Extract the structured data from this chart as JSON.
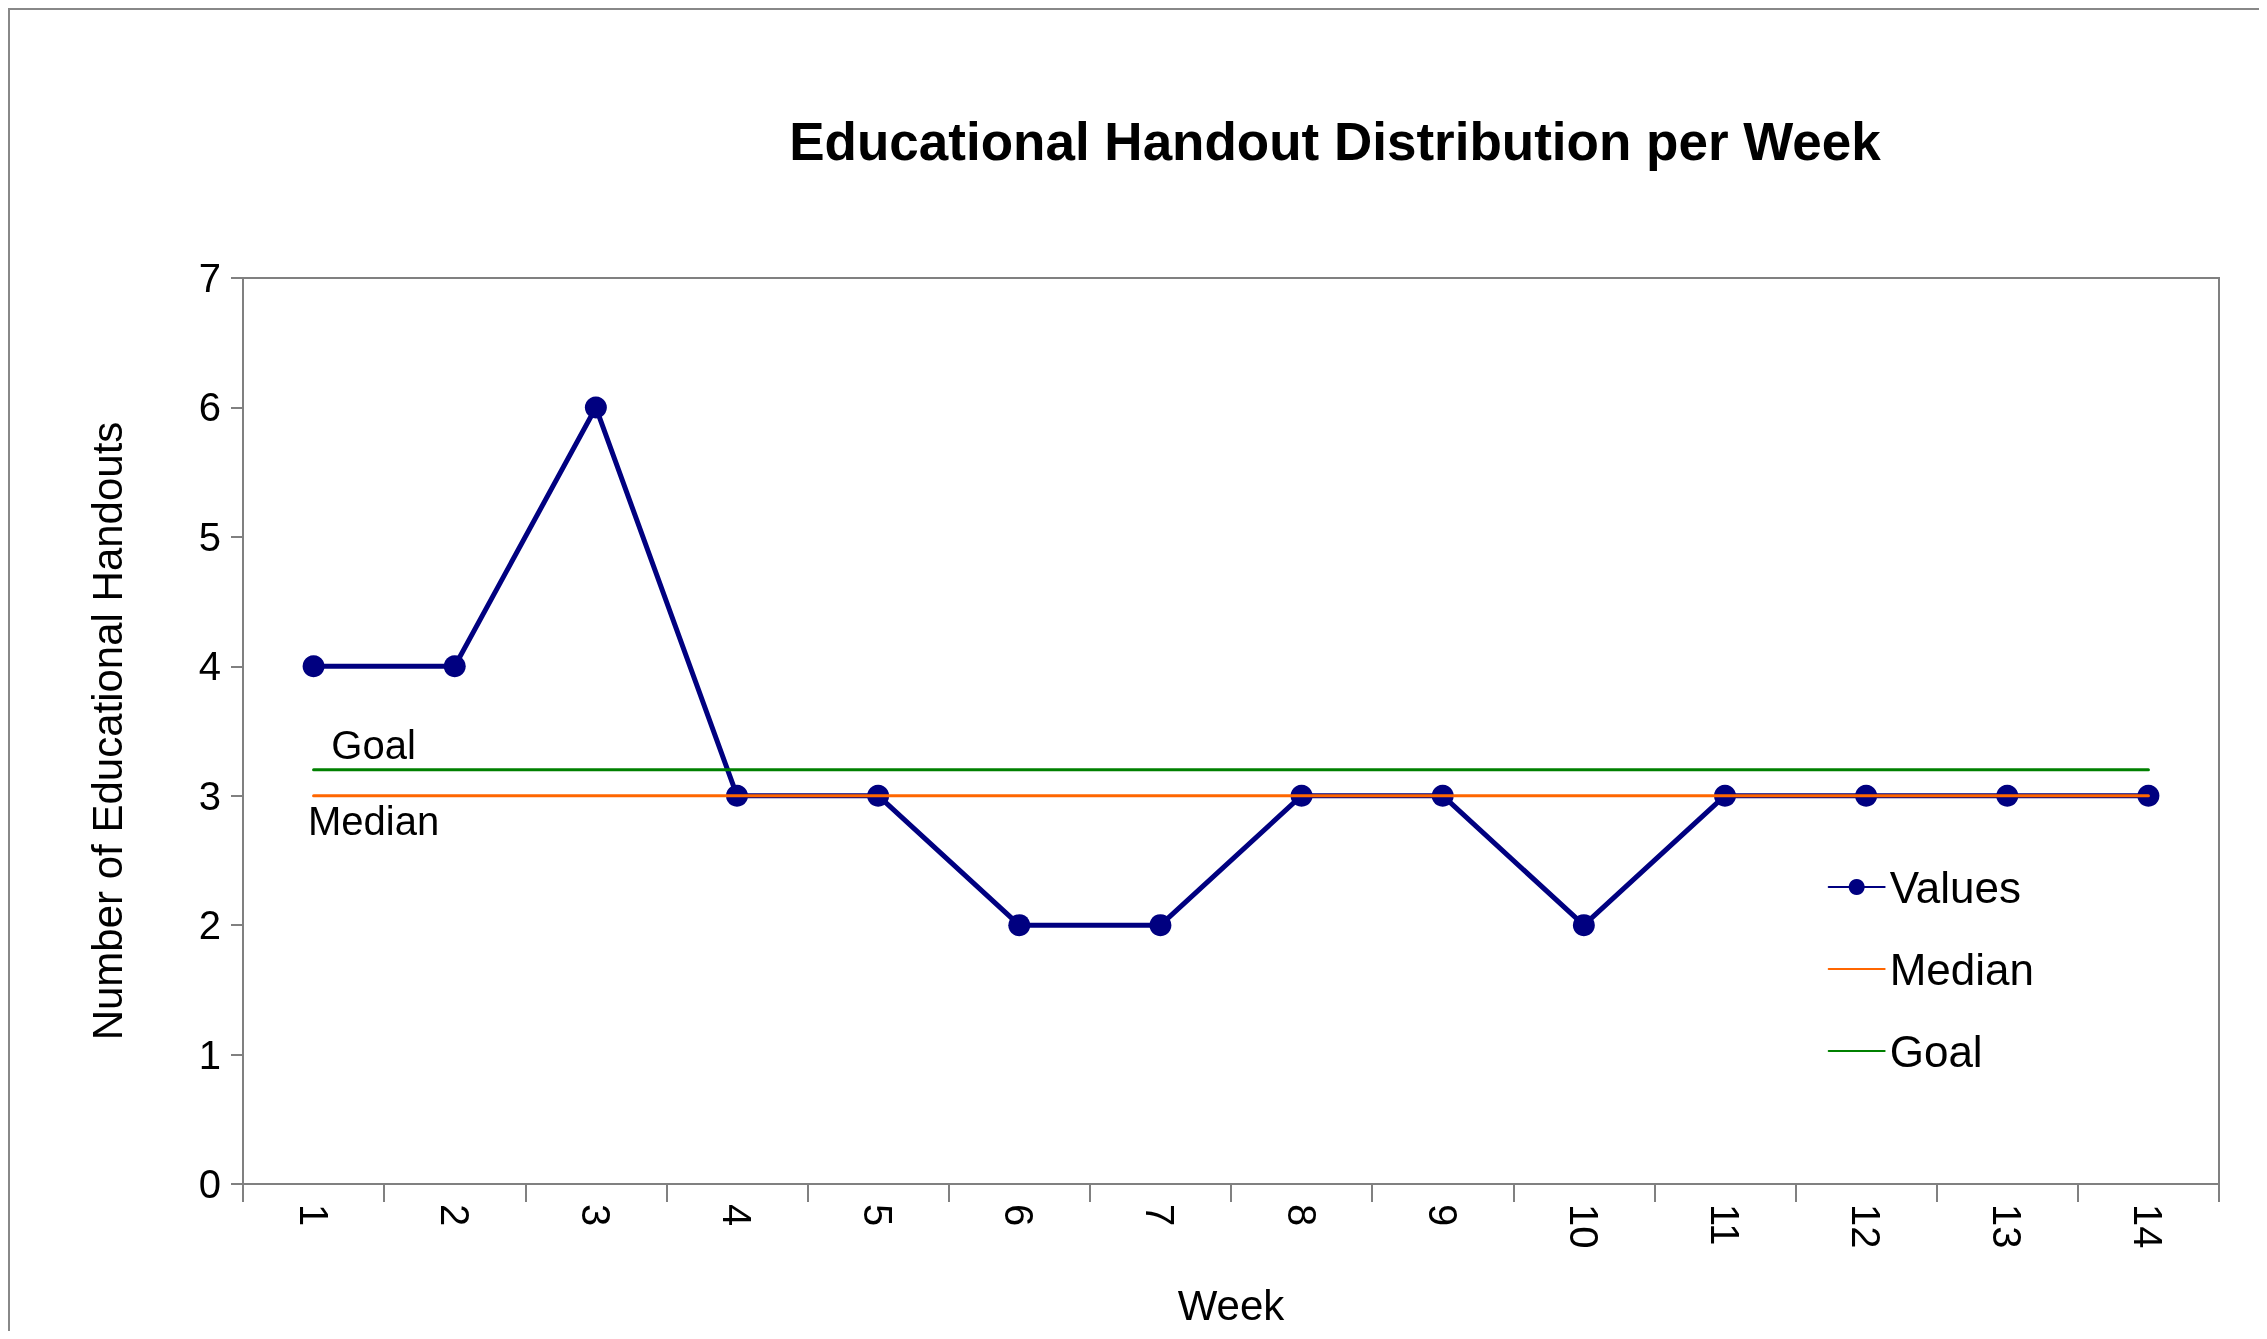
{
  "chart_data": {
    "type": "line",
    "title": "Educational Handout Distribution per Week",
    "xlabel": "Week",
    "ylabel": "Number of Educational Handouts",
    "categories": [
      "1",
      "2",
      "3",
      "4",
      "5",
      "6",
      "7",
      "8",
      "9",
      "10",
      "11",
      "12",
      "13",
      "14"
    ],
    "series": [
      {
        "name": "Values",
        "color": "#000080",
        "marker": "circle",
        "values": [
          4,
          4,
          6,
          3,
          3,
          2,
          2,
          3,
          3,
          2,
          3,
          3,
          3,
          3
        ]
      },
      {
        "name": "Median",
        "color": "#ff6600",
        "marker": "none",
        "values": [
          3,
          3,
          3,
          3,
          3,
          3,
          3,
          3,
          3,
          3,
          3,
          3,
          3,
          3
        ]
      },
      {
        "name": "Goal",
        "color": "#008000",
        "marker": "none",
        "values": [
          3.2,
          3.2,
          3.2,
          3.2,
          3.2,
          3.2,
          3.2,
          3.2,
          3.2,
          3.2,
          3.2,
          3.2,
          3.2,
          3.2
        ]
      }
    ],
    "ylim": [
      0,
      7
    ],
    "yticks": [
      0,
      1,
      2,
      3,
      4,
      5,
      6,
      7
    ],
    "grid": false,
    "legend": "bottom right"
  }
}
